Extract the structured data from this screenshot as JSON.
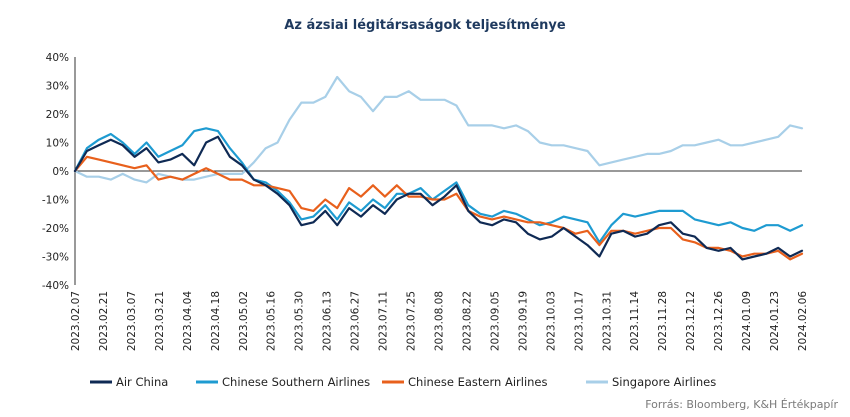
{
  "chart_data": {
    "type": "line",
    "title": "Az ázsiai légitársaságok teljesítménye",
    "source": "Forrás: Bloomberg, K&H Értékpapír",
    "y_unit": "%",
    "ylim": [
      -40,
      40
    ],
    "yticks": [
      40,
      30,
      20,
      10,
      0,
      -10,
      -20,
      -30,
      -40
    ],
    "ytick_labels": [
      "40%",
      "30%",
      "20%",
      "10%",
      "0%",
      "-10%",
      "-20%",
      "-30%",
      "-40%"
    ],
    "x_tick_labels": [
      "2023.02.07",
      "2023.02.21",
      "2023.03.07",
      "2023.03.21",
      "2023.04.04",
      "2023.04.18",
      "2023.05.02",
      "2023.05.16",
      "2023.05.30",
      "2023.06.13",
      "2023.06.27",
      "2023.07.11",
      "2023.07.25",
      "2023.08.08",
      "2023.08.22",
      "2023.09.05",
      "2023.09.19",
      "2023.10.03",
      "2023.10.17",
      "2023.10.31",
      "2023.11.14",
      "2023.11.28",
      "2023.12.12",
      "2023.12.26",
      "2024.01.09",
      "2024.01.23",
      "2024.02.06"
    ],
    "grid": false,
    "legend_position": "bottom",
    "series": [
      {
        "name": "Air China",
        "color": "#0f2a54",
        "values": [
          0,
          7,
          9,
          11,
          9,
          5,
          8,
          3,
          4,
          6,
          2,
          10,
          12,
          5,
          2,
          -3,
          -5,
          -8,
          -12,
          -19,
          -18,
          -14,
          -19,
          -13,
          -16,
          -12,
          -15,
          -10,
          -8,
          -8,
          -12,
          -9,
          -5,
          -14,
          -18,
          -19,
          -17,
          -18,
          -22,
          -24,
          -23,
          -20,
          -23,
          -26,
          -30,
          -22,
          -21,
          -23,
          -22,
          -19,
          -18,
          -22,
          -23,
          -27,
          -28,
          -27,
          -31,
          -30,
          -29,
          -27,
          -30,
          -28
        ]
      },
      {
        "name": "Chinese Southern Airlines",
        "color": "#1e9bd1",
        "values": [
          0,
          8,
          11,
          13,
          10,
          6,
          10,
          5,
          7,
          9,
          14,
          15,
          14,
          8,
          3,
          -3,
          -4,
          -7,
          -11,
          -17,
          -16,
          -12,
          -17,
          -11,
          -14,
          -10,
          -13,
          -8,
          -8,
          -6,
          -10,
          -7,
          -4,
          -12,
          -15,
          -16,
          -14,
          -15,
          -17,
          -19,
          -18,
          -16,
          -17,
          -18,
          -25,
          -19,
          -15,
          -16,
          -15,
          -14,
          -14,
          -14,
          -17,
          -18,
          -19,
          -18,
          -20,
          -21,
          -19,
          -19,
          -21,
          -19
        ]
      },
      {
        "name": "Chinese Eastern Airlines",
        "color": "#e8601c",
        "values": [
          0,
          5,
          4,
          3,
          2,
          1,
          2,
          -3,
          -2,
          -3,
          -1,
          1,
          -1,
          -3,
          -3,
          -5,
          -5,
          -6,
          -7,
          -13,
          -14,
          -10,
          -13,
          -6,
          -9,
          -5,
          -9,
          -5,
          -9,
          -9,
          -10,
          -10,
          -8,
          -14,
          -16,
          -17,
          -16,
          -17,
          -18,
          -18,
          -19,
          -20,
          -22,
          -21,
          -26,
          -21,
          -21,
          -22,
          -21,
          -20,
          -20,
          -24,
          -25,
          -27,
          -27,
          -28,
          -30,
          -29,
          -29,
          -28,
          -31,
          -29
        ]
      },
      {
        "name": "Singapore Airlines",
        "color": "#a8cfe8",
        "values": [
          0,
          -2,
          -2,
          -3,
          -1,
          -3,
          -4,
          -1,
          -2,
          -3,
          -3,
          -2,
          -1,
          -1,
          -1,
          3,
          8,
          10,
          18,
          24,
          24,
          26,
          33,
          28,
          26,
          21,
          26,
          26,
          28,
          25,
          25,
          25,
          23,
          16,
          16,
          16,
          15,
          16,
          14,
          10,
          9,
          9,
          8,
          7,
          2,
          3,
          4,
          5,
          6,
          6,
          7,
          9,
          9,
          10,
          11,
          9,
          9,
          10,
          11,
          12,
          16,
          15
        ]
      }
    ]
  }
}
